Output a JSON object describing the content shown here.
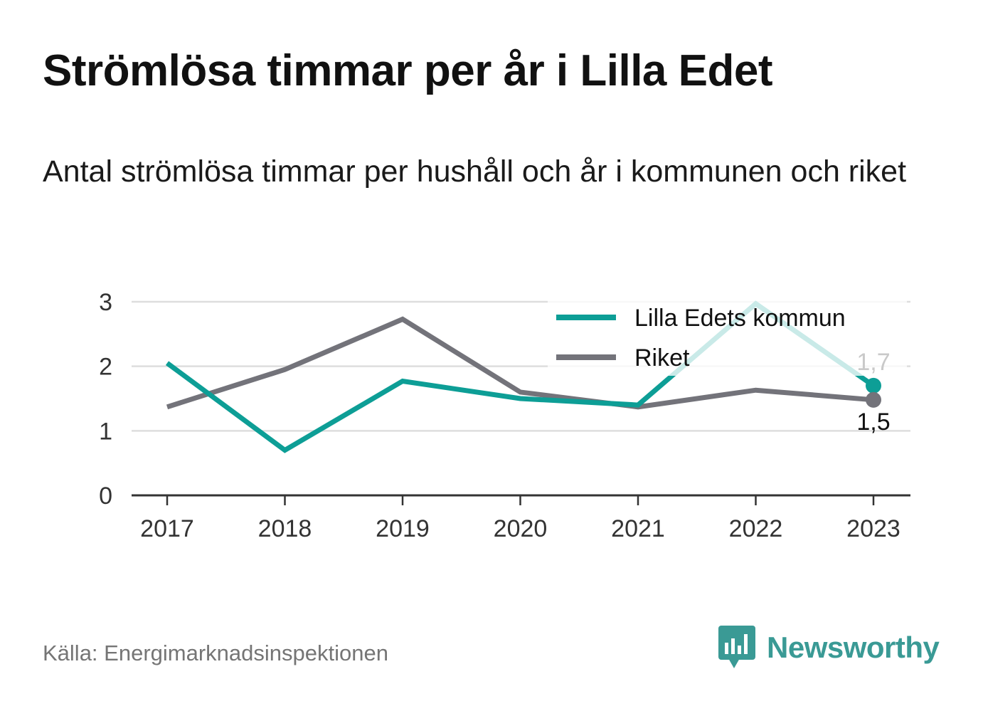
{
  "title": "Strömlösa timmar per år i Lilla Edet",
  "subtitle": "Antal strömlösa timmar per hushåll och år i kommunen och riket",
  "source": "Källa: Energimarknadsinspektionen",
  "brand": {
    "name": "Newsworthy",
    "icon": "newsworthy-logo-icon",
    "color": "#3a9a95"
  },
  "colors": {
    "kommun": "#0d9e96",
    "riket": "#73737a",
    "grid": "#dedede",
    "axis": "#333333"
  },
  "chart_data": {
    "type": "line",
    "title": "Strömlösa timmar per år i Lilla Edet",
    "x": [
      "2017",
      "2018",
      "2019",
      "2020",
      "2021",
      "2022",
      "2023"
    ],
    "ylim": [
      0,
      3
    ],
    "yticks": [
      "0",
      "1",
      "2",
      "3"
    ],
    "grid": true,
    "legend": "top-right",
    "series": [
      {
        "name": "Lilla Edets kommun",
        "color": "#0d9e96",
        "values": [
          2.05,
          0.7,
          1.77,
          1.5,
          1.4,
          2.97,
          1.7
        ]
      },
      {
        "name": "Riket",
        "color": "#73737a",
        "values": [
          1.37,
          1.95,
          2.73,
          1.6,
          1.37,
          1.63,
          1.48
        ]
      }
    ],
    "end_labels": [
      {
        "series": "Lilla Edets kommun",
        "text": "1,7"
      },
      {
        "series": "Riket",
        "text": "1,5"
      }
    ]
  }
}
